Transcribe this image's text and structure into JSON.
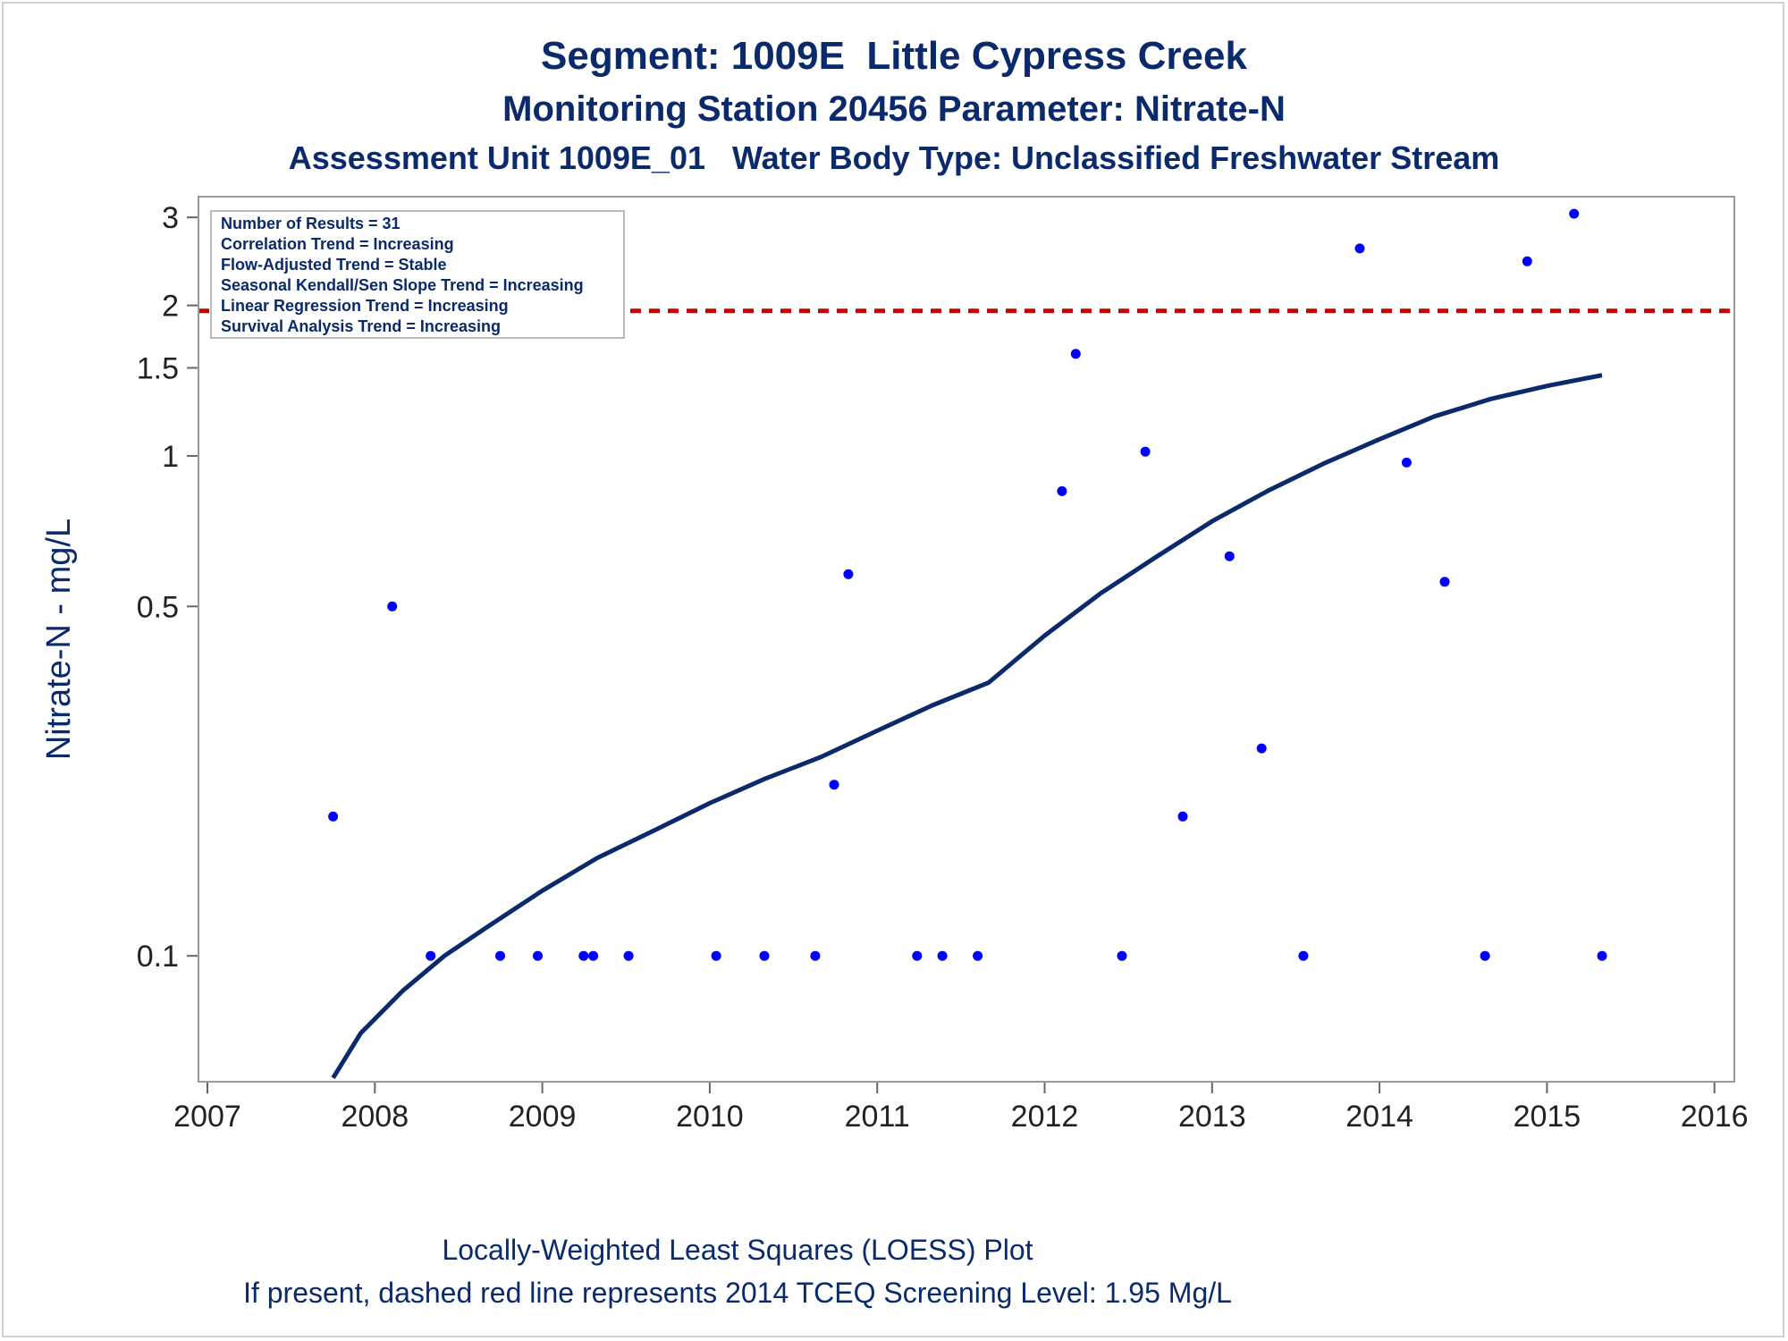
{
  "titles": {
    "line1": "Segment: 1009E  Little Cypress Creek",
    "line2": "Monitoring Station 20456 Parameter: Nitrate-N",
    "line3": "Assessment Unit 1009E_01   Water Body Type: Unclassified Freshwater Stream"
  },
  "footnotes": {
    "line1": "Locally-Weighted Least Squares (LOESS) Plot",
    "line2": "If present, dashed red line represents 2014 TCEQ Screening Level: 1.95 Mg/L"
  },
  "stats_box": [
    "Number of Results = 31",
    "Correlation Trend = Increasing",
    "Flow-Adjusted Trend = Stable",
    "Seasonal Kendall/Sen Slope Trend = Increasing",
    "Linear Regression Trend = Increasing",
    "Survival Analysis Trend = Increasing"
  ],
  "colors": {
    "text": "#0a2a6b",
    "points": "#0000ff",
    "loess": "#0a2a6b",
    "screening": "#cc0000",
    "frame": "#999999"
  },
  "chart_data": {
    "type": "scatter",
    "xlabel": "",
    "ylabel": "Nitrate-N - mg/L",
    "xlim": [
      2007,
      2016
    ],
    "ylim": [
      0.056,
      3.3
    ],
    "yscale": "log",
    "xticks": [
      "2007",
      "2008",
      "2009",
      "2010",
      "2011",
      "2012",
      "2013",
      "2014",
      "2015",
      "2016"
    ],
    "yticks": [
      {
        "v": 0.1,
        "label": "0.1"
      },
      {
        "v": 0.5,
        "label": "0.5"
      },
      {
        "v": 1,
        "label": "1"
      },
      {
        "v": 1.5,
        "label": "1.5"
      },
      {
        "v": 2,
        "label": "2"
      },
      {
        "v": 3,
        "label": "3"
      }
    ],
    "screening_level": 1.95,
    "points": [
      {
        "x": "2007-10-02",
        "y": 0.19
      },
      {
        "x": "2008-02-08",
        "y": 0.5
      },
      {
        "x": "2008-05-02",
        "y": 0.1
      },
      {
        "x": "2008-10-01",
        "y": 0.1
      },
      {
        "x": "2008-12-22",
        "y": 0.1
      },
      {
        "x": "2009-04-01",
        "y": 0.1
      },
      {
        "x": "2009-04-22",
        "y": 0.1
      },
      {
        "x": "2009-07-08",
        "y": 0.1
      },
      {
        "x": "2010-01-15",
        "y": 0.1
      },
      {
        "x": "2010-04-30",
        "y": 0.1
      },
      {
        "x": "2010-08-19",
        "y": 0.1
      },
      {
        "x": "2010-09-29",
        "y": 0.22
      },
      {
        "x": "2010-10-30",
        "y": 0.58
      },
      {
        "x": "2011-03-29",
        "y": 0.1
      },
      {
        "x": "2011-05-23",
        "y": 0.1
      },
      {
        "x": "2011-08-08",
        "y": 0.1
      },
      {
        "x": "2012-02-08",
        "y": 0.85
      },
      {
        "x": "2012-03-09",
        "y": 1.6
      },
      {
        "x": "2012-06-18",
        "y": 0.1
      },
      {
        "x": "2012-08-08",
        "y": 1.02
      },
      {
        "x": "2012-10-29",
        "y": 0.19
      },
      {
        "x": "2013-02-08",
        "y": 0.63
      },
      {
        "x": "2013-04-19",
        "y": 0.26
      },
      {
        "x": "2013-07-19",
        "y": 0.1
      },
      {
        "x": "2013-11-19",
        "y": 2.6
      },
      {
        "x": "2014-03-01",
        "y": 0.97
      },
      {
        "x": "2014-05-23",
        "y": 0.56
      },
      {
        "x": "2014-08-19",
        "y": 0.1
      },
      {
        "x": "2014-11-19",
        "y": 2.45
      },
      {
        "x": "2015-03-01",
        "y": 3.05
      },
      {
        "x": "2015-05-01",
        "y": 0.1
      }
    ],
    "loess": [
      {
        "x": "2007-10-02",
        "y": 0.057
      },
      {
        "x": "2007-12-01",
        "y": 0.07
      },
      {
        "x": "2008-03-01",
        "y": 0.085
      },
      {
        "x": "2008-06-01",
        "y": 0.1
      },
      {
        "x": "2008-09-01",
        "y": 0.114
      },
      {
        "x": "2009-01-01",
        "y": 0.135
      },
      {
        "x": "2009-05-01",
        "y": 0.157
      },
      {
        "x": "2009-09-01",
        "y": 0.178
      },
      {
        "x": "2010-01-01",
        "y": 0.202
      },
      {
        "x": "2010-05-01",
        "y": 0.226
      },
      {
        "x": "2010-09-01",
        "y": 0.25
      },
      {
        "x": "2011-01-01",
        "y": 0.282
      },
      {
        "x": "2011-05-01",
        "y": 0.317
      },
      {
        "x": "2011-09-01",
        "y": 0.352
      },
      {
        "x": "2012-01-01",
        "y": 0.437
      },
      {
        "x": "2012-05-01",
        "y": 0.53
      },
      {
        "x": "2012-09-01",
        "y": 0.628
      },
      {
        "x": "2013-01-01",
        "y": 0.74
      },
      {
        "x": "2013-05-01",
        "y": 0.85
      },
      {
        "x": "2013-09-01",
        "y": 0.965
      },
      {
        "x": "2014-01-01",
        "y": 1.08
      },
      {
        "x": "2014-05-01",
        "y": 1.2
      },
      {
        "x": "2014-09-01",
        "y": 1.3
      },
      {
        "x": "2015-01-01",
        "y": 1.38
      },
      {
        "x": "2015-05-01",
        "y": 1.45
      }
    ]
  }
}
